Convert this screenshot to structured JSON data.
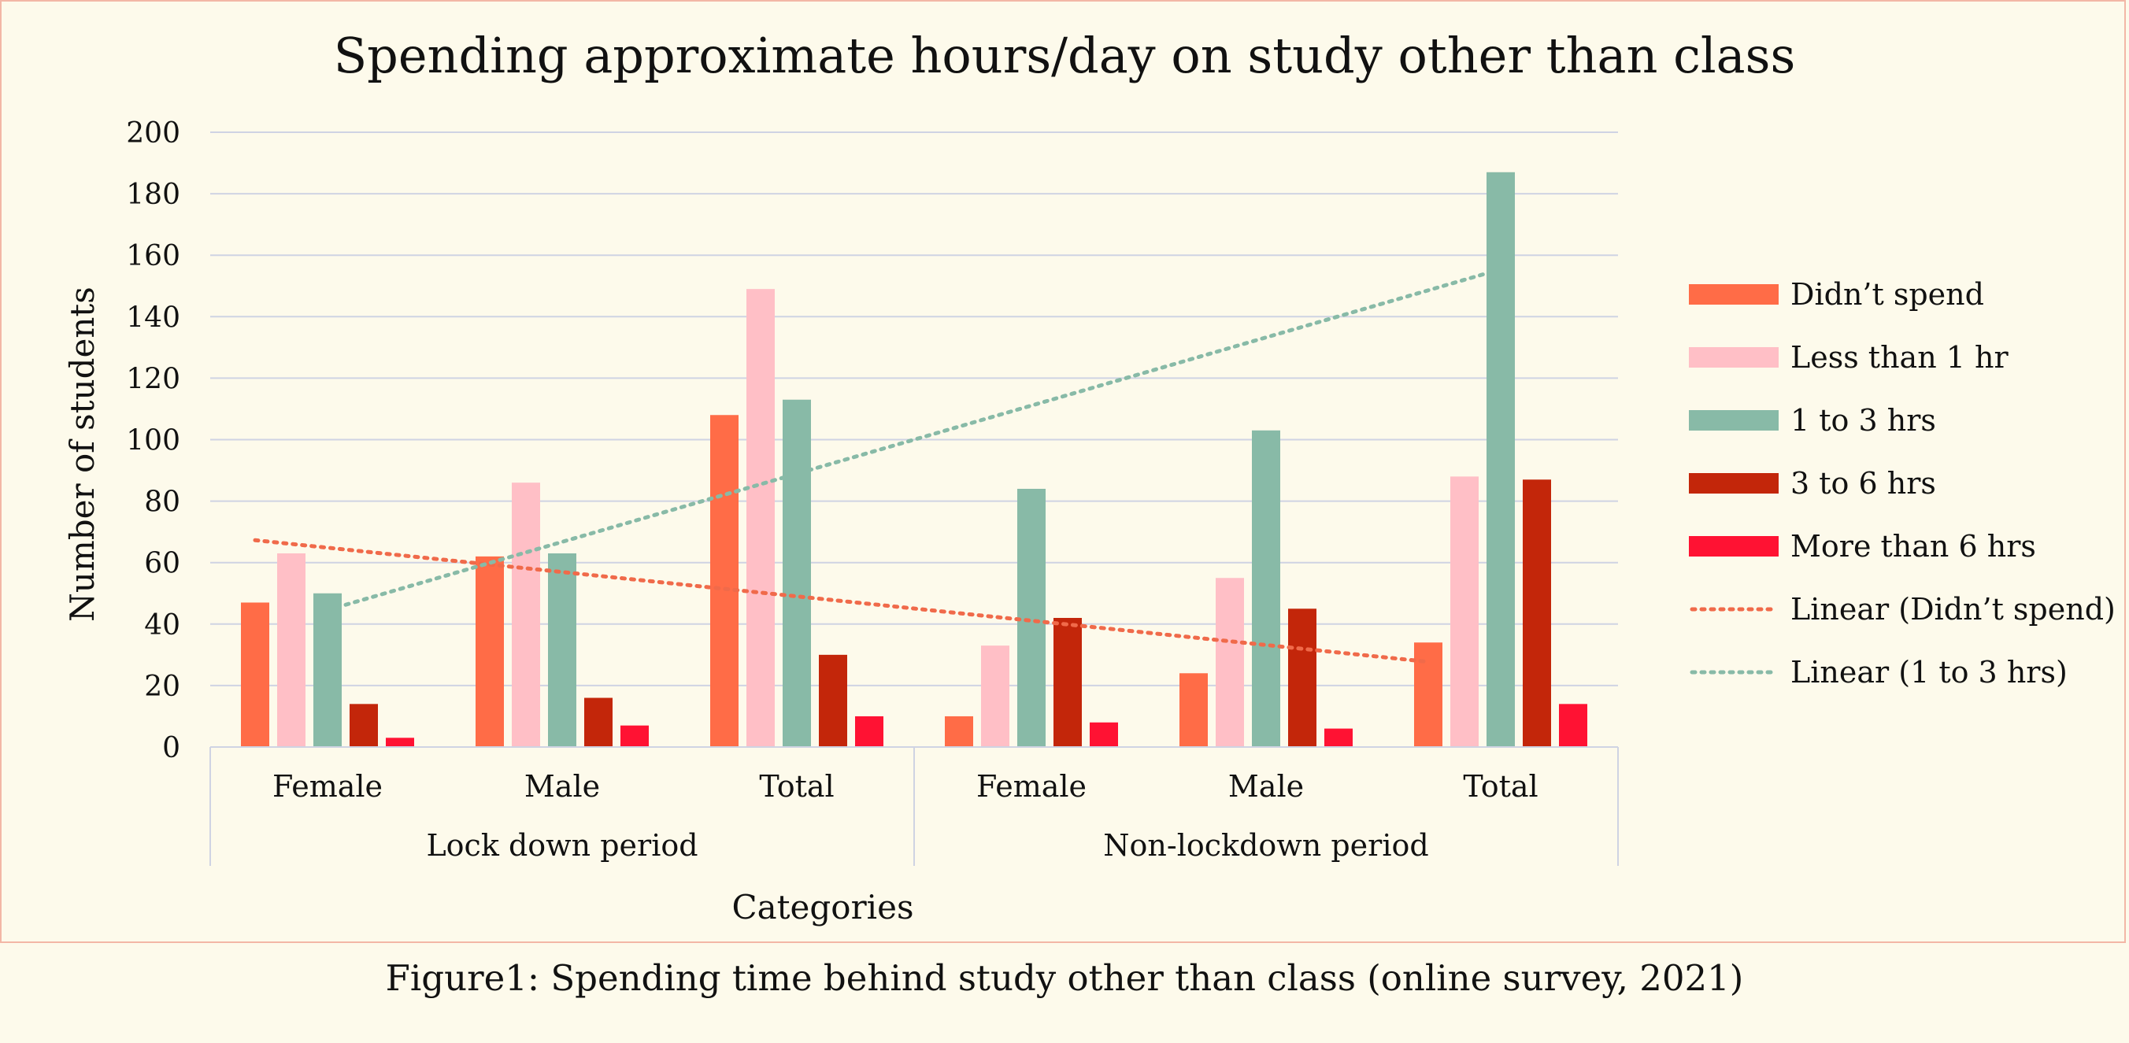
{
  "chart_data": {
    "type": "bar",
    "title": "Spending approximate hours/day on study other than class",
    "xlabel": "Categories",
    "ylabel": "Number of students",
    "ylim": [
      0,
      200
    ],
    "yticks": [
      "0",
      "20",
      "40",
      "60",
      "80",
      "100",
      "120",
      "140",
      "160",
      "180",
      "200"
    ],
    "grid": true,
    "legend_position": "right",
    "groups": [
      {
        "label": "Lock down period",
        "categories": [
          "Female",
          "Male",
          "Total"
        ]
      },
      {
        "label": "Non-lockdown period",
        "categories": [
          "Female",
          "Male",
          "Total"
        ]
      }
    ],
    "series": [
      {
        "name": "Didn’t spend",
        "color": "#ff6c47",
        "values": [
          47,
          62,
          108,
          10,
          24,
          34
        ]
      },
      {
        "name": "Less than 1 hr",
        "color": "#ffbfc6",
        "values": [
          63,
          86,
          149,
          33,
          55,
          88
        ]
      },
      {
        "name": "1 to 3 hrs",
        "color": "#88baa7",
        "values": [
          50,
          63,
          113,
          84,
          103,
          187
        ]
      },
      {
        "name": "3 to 6 hrs",
        "color": "#c3260a",
        "values": [
          14,
          16,
          30,
          42,
          45,
          87
        ]
      },
      {
        "name": "More than 6 hrs",
        "color": "#ff1233",
        "values": [
          3,
          7,
          10,
          8,
          6,
          14
        ]
      }
    ],
    "trendlines": [
      {
        "name": "Linear (Didn’t spend)",
        "color": "#f06a4a",
        "series_index": 0
      },
      {
        "name": "Linear (1 to 3 hrs)",
        "color": "#88baa7",
        "series_index": 2
      }
    ]
  },
  "caption": "Figure1: Spending time behind study other than class (online survey, 2021)"
}
